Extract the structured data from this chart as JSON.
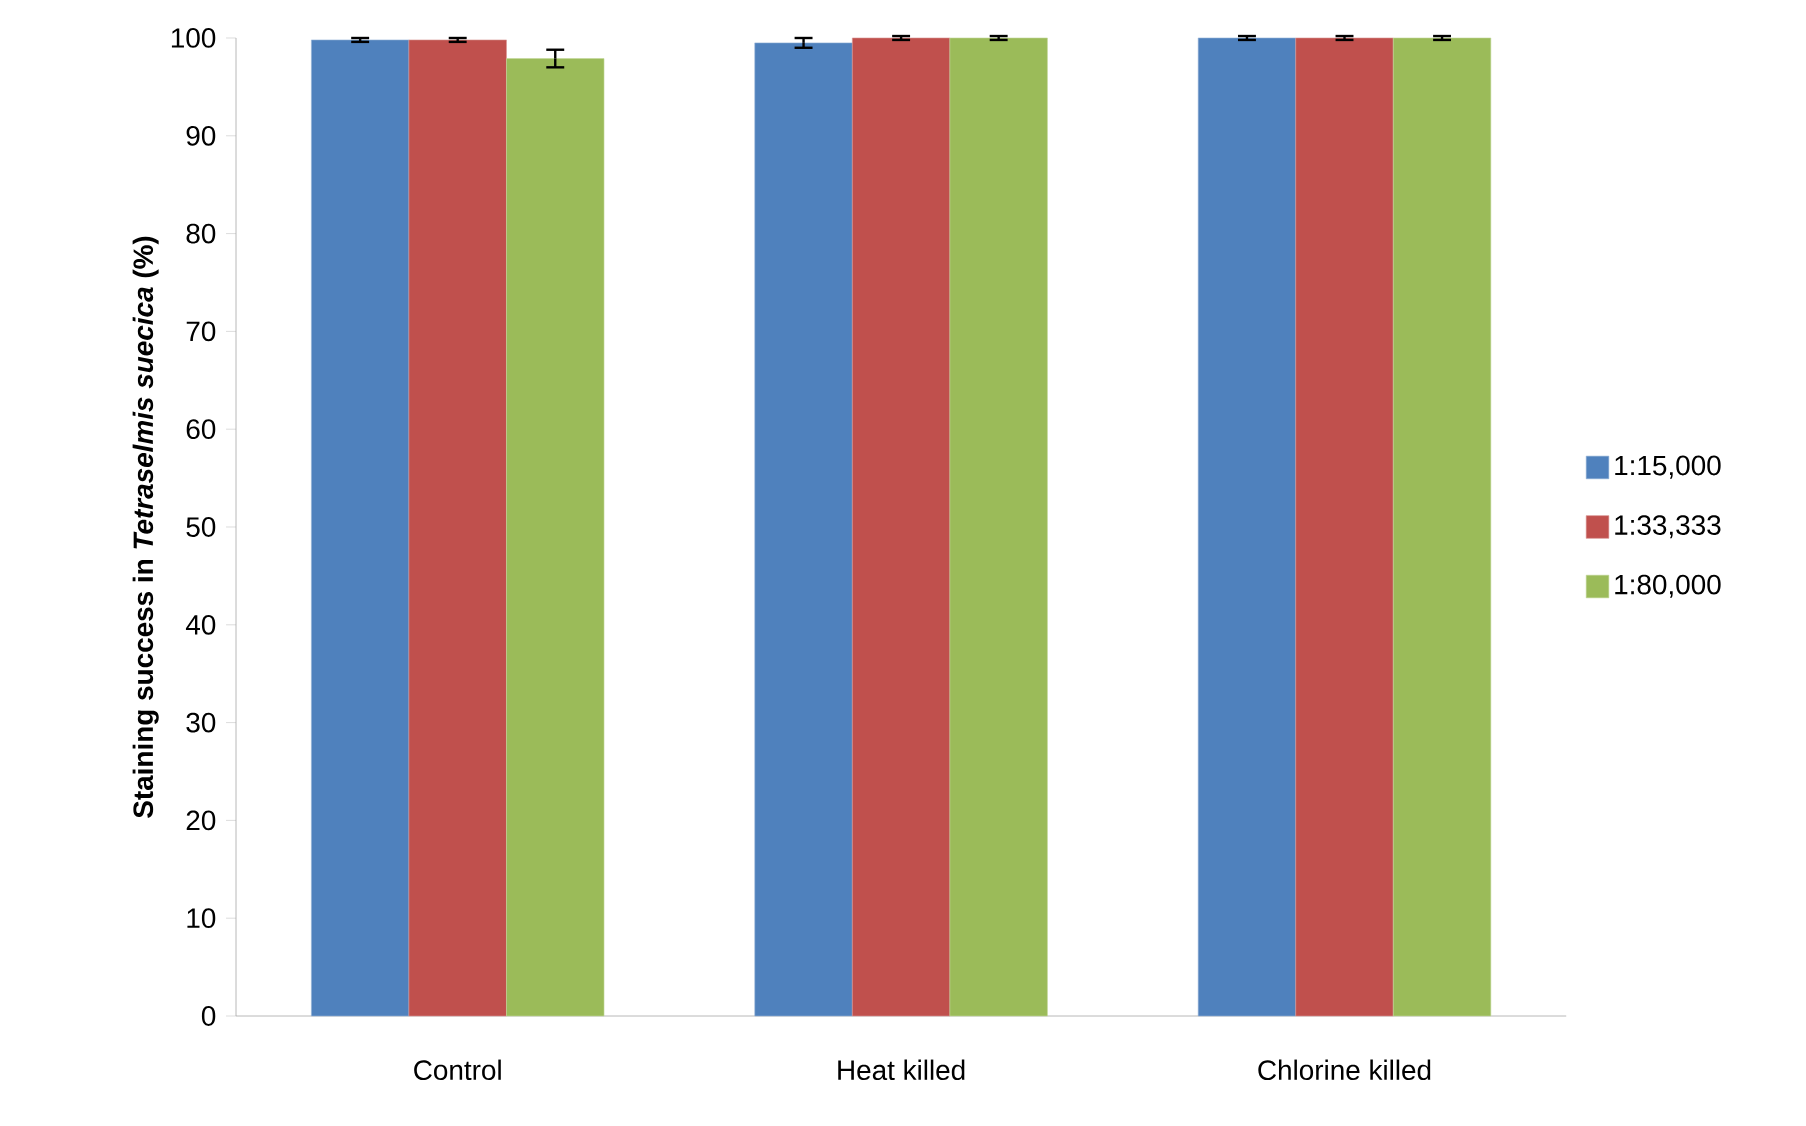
{
  "chart_data": {
    "type": "bar",
    "ylabel": "Staining success in *Tetraselmis suecica* (%)",
    "categories": [
      "Control",
      "Heat killed",
      "Chlorine killed"
    ],
    "series": [
      {
        "name": "1:15,000",
        "color": "#4f81bd",
        "values": [
          99.8,
          99.5,
          100
        ],
        "errors": [
          0.2,
          0.5,
          0.2
        ]
      },
      {
        "name": "1:33,333",
        "color": "#c0504d",
        "values": [
          99.8,
          100,
          100
        ],
        "errors": [
          0.2,
          0.2,
          0.2
        ]
      },
      {
        "name": "1:80,000",
        "color": "#9bbb59",
        "values": [
          97.9,
          100,
          100
        ],
        "errors": [
          0.9,
          0.2,
          0.2
        ]
      }
    ],
    "ylim": [
      0,
      100
    ],
    "yticks": [
      0,
      10,
      20,
      30,
      40,
      50,
      60,
      70,
      80,
      90,
      100
    ],
    "grid": false,
    "legend": "right"
  }
}
